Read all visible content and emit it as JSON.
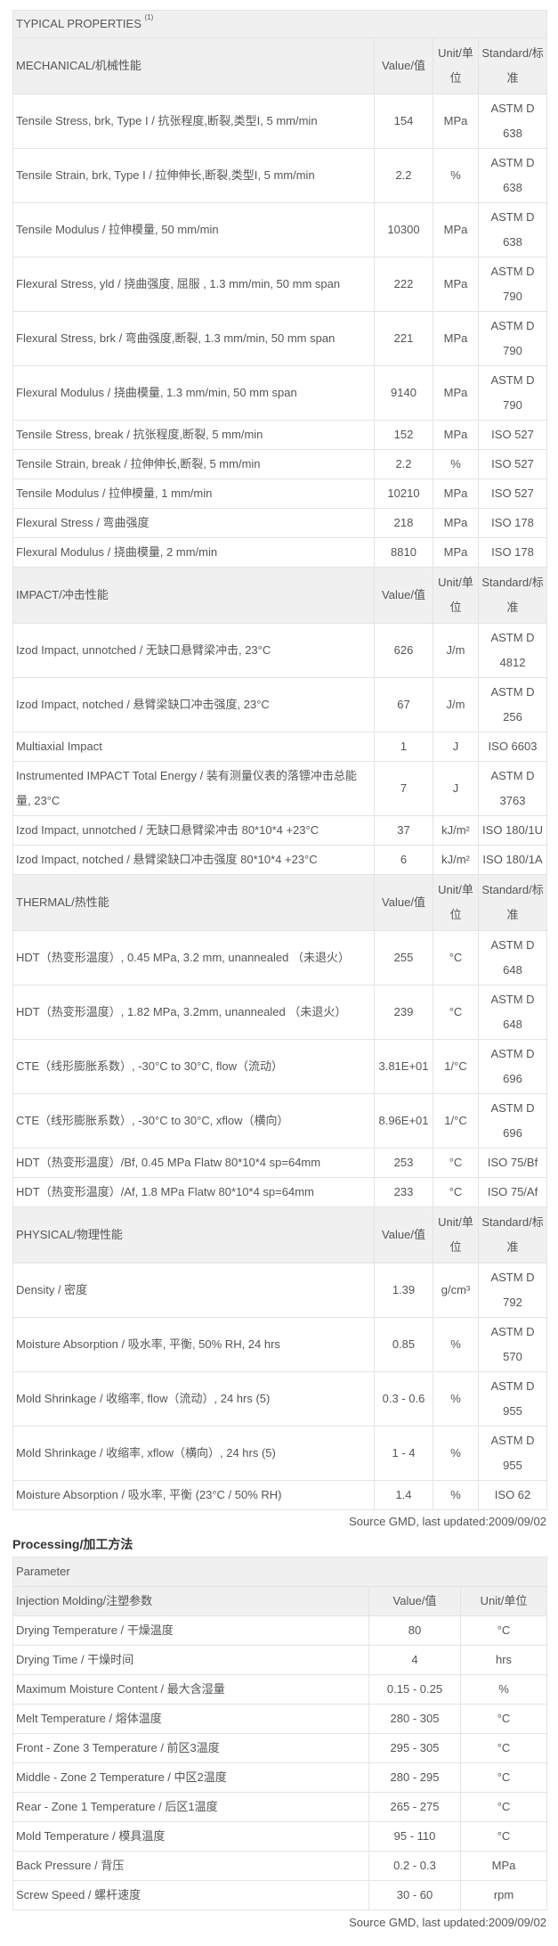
{
  "properties": {
    "title": "TYPICAL PROPERTIES",
    "title_note": "(1)",
    "col_value": "Value/值",
    "col_unit": "Unit/单位",
    "col_standard": "Standard/标准",
    "sections": [
      {
        "name": "MECHANICAL/机械性能",
        "rows": [
          [
            "Tensile Stress, brk, Type I / 抗张程度,断裂,类型I, 5 mm/min",
            "154",
            "MPa",
            "ASTM D 638"
          ],
          [
            "Tensile Strain, brk, Type I / 拉伸伸长,断裂,类型I, 5 mm/min",
            "2.2",
            "%",
            "ASTM D 638"
          ],
          [
            "Tensile Modulus / 拉伸模量, 50 mm/min",
            "10300",
            "MPa",
            "ASTM D 638"
          ],
          [
            "Flexural Stress, yld / 挠曲强度, 屈服 , 1.3 mm/min, 50 mm span",
            "222",
            "MPa",
            "ASTM D 790"
          ],
          [
            "Flexural Stress, brk / 弯曲强度,断裂, 1.3 mm/min, 50 mm span",
            "221",
            "MPa",
            "ASTM D 790"
          ],
          [
            "Flexural Modulus / 挠曲模量, 1.3 mm/min, 50 mm span",
            "9140",
            "MPa",
            "ASTM D 790"
          ],
          [
            "Tensile Stress, break / 抗张程度,断裂, 5 mm/min",
            "152",
            "MPa",
            "ISO 527"
          ],
          [
            "Tensile Strain, break / 拉伸伸长,断裂, 5 mm/min",
            "2.2",
            "%",
            "ISO 527"
          ],
          [
            "Tensile Modulus / 拉伸模量, 1 mm/min",
            "10210",
            "MPa",
            "ISO 527"
          ],
          [
            "Flexural Stress / 弯曲强度",
            "218",
            "MPa",
            "ISO 178"
          ],
          [
            "Flexural Modulus / 挠曲模量, 2 mm/min",
            "8810",
            "MPa",
            "ISO 178"
          ]
        ]
      },
      {
        "name": "IMPACT/冲击性能",
        "rows": [
          [
            "Izod Impact, unnotched / 无缺口悬臂梁冲击, 23°C",
            "626",
            "J/m",
            "ASTM D 4812"
          ],
          [
            "Izod Impact, notched / 悬臂梁缺口冲击强度, 23°C",
            "67",
            "J/m",
            "ASTM D 256"
          ],
          [
            "Multiaxial Impact",
            "1",
            "J",
            "ISO 6603"
          ],
          [
            "Instrumented IMPACT Total Energy / 装有测量仪表的落镖冲击总能量, 23°C",
            "7",
            "J",
            "ASTM D 3763"
          ],
          [
            "Izod Impact, unnotched / 无缺口悬臂梁冲击 80*10*4 +23°C",
            "37",
            "kJ/m²",
            "ISO 180/1U"
          ],
          [
            "Izod Impact, notched / 悬臂梁缺口冲击强度 80*10*4 +23°C",
            "6",
            "kJ/m²",
            "ISO 180/1A"
          ]
        ]
      },
      {
        "name": "THERMAL/热性能",
        "rows": [
          [
            "HDT（热变形温度）, 0.45 MPa, 3.2 mm, unannealed （未退火）",
            "255",
            "°C",
            "ASTM D 648"
          ],
          [
            "HDT（热变形温度）, 1.82 MPa, 3.2mm, unannealed （未退火）",
            "239",
            "°C",
            "ASTM D 648"
          ],
          [
            "CTE（线形膨胀系数）, -30°C to 30°C, flow（流动）",
            "3.81E+01",
            "1/°C",
            "ASTM D 696"
          ],
          [
            "CTE（线形膨胀系数）, -30°C to 30°C, xflow（横向）",
            "8.96E+01",
            "1/°C",
            "ASTM D 696"
          ],
          [
            "HDT（热变形温度）/Bf, 0.45 MPa Flatw 80*10*4 sp=64mm",
            "253",
            "°C",
            "ISO 75/Bf"
          ],
          [
            "HDT（热变形温度）/Af, 1.8 MPa Flatw 80*10*4 sp=64mm",
            "233",
            "°C",
            "ISO 75/Af"
          ]
        ]
      },
      {
        "name": "PHYSICAL/物理性能",
        "rows": [
          [
            "Density / 密度",
            "1.39",
            "g/cm³",
            "ASTM D 792"
          ],
          [
            "Moisture Absorption / 吸水率, 平衡, 50% RH, 24 hrs",
            "0.85",
            "%",
            "ASTM D 570"
          ],
          [
            "Mold Shrinkage / 收缩率, flow（流动）, 24 hrs (5)",
            "0.3 - 0.6",
            "%",
            "ASTM D 955"
          ],
          [
            "Mold Shrinkage / 收缩率, xflow（横向）, 24 hrs (5)",
            "1 - 4",
            "%",
            "ASTM D 955"
          ],
          [
            "Moisture Absorption / 吸水率, 平衡 (23°C / 50% RH)",
            "1.4",
            "%",
            "ISO 62"
          ]
        ]
      }
    ],
    "source": "Source GMD, last updated:2009/09/02"
  },
  "processing": {
    "heading": "Processing/加工方法",
    "title": "Parameter",
    "section": "Injection Molding/注塑参数",
    "col_value": "Value/值",
    "col_unit": "Unit/单位",
    "rows": [
      [
        "Drying Temperature / 干燥温度",
        "80",
        "°C"
      ],
      [
        "Drying Time / 干燥时间",
        "4",
        "hrs"
      ],
      [
        "Maximum Moisture Content / 最大含湿量",
        "0.15 - 0.25",
        "%"
      ],
      [
        "Melt Temperature / 熔体温度",
        "280 - 305",
        "°C"
      ],
      [
        "Front - Zone 3 Temperature / 前区3温度",
        "295 - 305",
        "°C"
      ],
      [
        "Middle - Zone 2 Temperature / 中区2温度",
        "280 - 295",
        "°C"
      ],
      [
        "Rear - Zone 1 Temperature / 后区1温度",
        "265 - 275",
        "°C"
      ],
      [
        "Mold Temperature / 模具温度",
        "95 - 110",
        "°C"
      ],
      [
        "Back Pressure / 背压",
        "0.2 - 0.3",
        "MPa"
      ],
      [
        "Screw Speed / 螺杆速度",
        "30 - 60",
        "rpm"
      ]
    ],
    "source": "Source GMD, last updated:2009/09/02"
  }
}
